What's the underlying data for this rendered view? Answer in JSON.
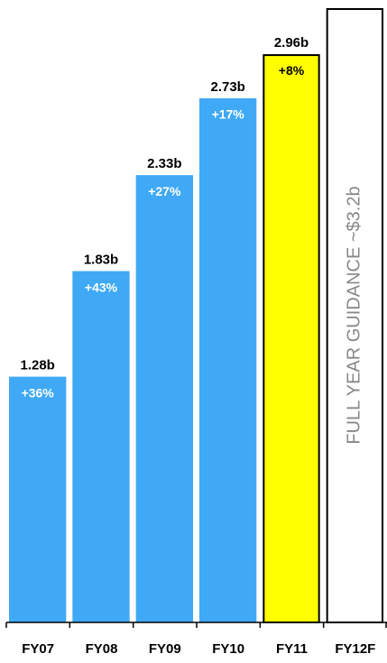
{
  "chart_data": {
    "type": "bar",
    "categories": [
      "FY07",
      "FY08",
      "FY09",
      "FY10",
      "FY11",
      "FY12F"
    ],
    "values": [
      1.28,
      1.83,
      2.33,
      2.73,
      2.96,
      3.2
    ],
    "value_labels": [
      "1.28b",
      "1.83b",
      "2.33b",
      "2.73b",
      "2.96b",
      "FULL YEAR GUIDANCE ~$3.2b"
    ],
    "growth_labels": [
      "+36%",
      "+43%",
      "+27%",
      "+17%",
      "+8%",
      null
    ],
    "colors": [
      "#3fa9f5",
      "#3fa9f5",
      "#3fa9f5",
      "#3fa9f5",
      "#ffff00",
      "#ffffff"
    ],
    "outlined": [
      false,
      false,
      false,
      false,
      true,
      true
    ],
    "ylim": [
      0,
      3.2
    ]
  }
}
